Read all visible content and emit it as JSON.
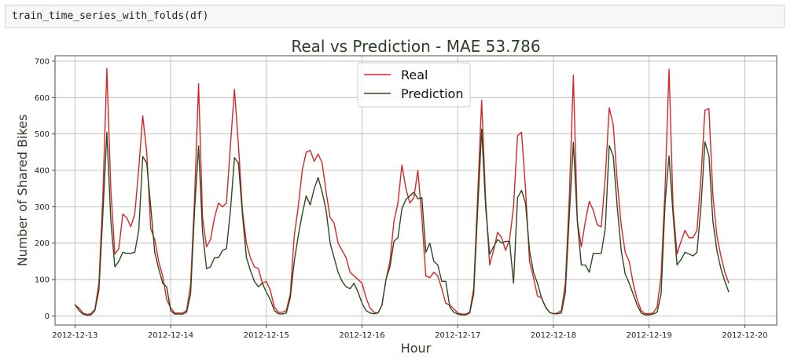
{
  "code_cell": {
    "code": "train_time_series_with_folds(df)"
  },
  "colors": {
    "real": "#d62728",
    "prediction": "#2c4a21",
    "frame": "#3f5a36",
    "grid": "#b0b0b0"
  },
  "chart_data": {
    "type": "line",
    "title": "Real vs Prediction - MAE 53.786",
    "xlabel": "Hour",
    "ylabel": "Number of Shared Bikes",
    "x_start": "2012-12-13 00:00",
    "x_step_hours": 1,
    "x_ticks": [
      "2012-12-13",
      "2012-12-14",
      "2012-12-15",
      "2012-12-16",
      "2012-12-17",
      "2012-12-18",
      "2012-12-19",
      "2012-12-20"
    ],
    "xlim": [
      "2012-12-12 19:00",
      "2012-12-20 08:00"
    ],
    "ylim": [
      -25,
      715
    ],
    "y_ticks": [
      0,
      100,
      200,
      300,
      400,
      500,
      600,
      700
    ],
    "grid": true,
    "legend": "top-center",
    "series": [
      {
        "name": "Real",
        "values": [
          30,
          22,
          8,
          4,
          6,
          18,
          90,
          330,
          680,
          345,
          170,
          185,
          280,
          270,
          245,
          280,
          405,
          550,
          450,
          240,
          210,
          150,
          110,
          45,
          22,
          8,
          8,
          8,
          15,
          85,
          325,
          638,
          270,
          190,
          210,
          270,
          310,
          300,
          310,
          470,
          623,
          470,
          290,
          200,
          160,
          135,
          130,
          90,
          95,
          70,
          25,
          10,
          10,
          15,
          60,
          220,
          300,
          400,
          450,
          455,
          425,
          445,
          420,
          340,
          270,
          255,
          200,
          180,
          160,
          120,
          110,
          100,
          90,
          50,
          22,
          10,
          8,
          30,
          100,
          150,
          260,
          310,
          415,
          350,
          310,
          325,
          400,
          270,
          110,
          105,
          120,
          110,
          75,
          35,
          30,
          20,
          8,
          5,
          5,
          10,
          75,
          330,
          593,
          320,
          140,
          180,
          230,
          215,
          180,
          210,
          300,
          495,
          505,
          350,
          150,
          105,
          55,
          50,
          25,
          10,
          6,
          8,
          15,
          90,
          330,
          662,
          260,
          190,
          260,
          315,
          290,
          250,
          245,
          380,
          572,
          525,
          370,
          250,
          175,
          150,
          90,
          45,
          15,
          6,
          6,
          8,
          25,
          110,
          350,
          678,
          300,
          170,
          205,
          235,
          215,
          215,
          235,
          380,
          565,
          570,
          330,
          220,
          165,
          120,
          90
        ]
      },
      {
        "name": "Prediction",
        "values": [
          32,
          15,
          5,
          2,
          3,
          15,
          70,
          280,
          505,
          260,
          135,
          150,
          175,
          172,
          172,
          175,
          235,
          438,
          420,
          300,
          175,
          130,
          90,
          80,
          15,
          5,
          5,
          5,
          10,
          60,
          290,
          467,
          230,
          130,
          135,
          160,
          160,
          180,
          185,
          290,
          435,
          420,
          280,
          160,
          125,
          95,
          80,
          90,
          65,
          45,
          15,
          6,
          5,
          8,
          50,
          150,
          220,
          280,
          330,
          305,
          350,
          380,
          340,
          290,
          200,
          160,
          120,
          95,
          80,
          75,
          90,
          65,
          35,
          15,
          8,
          6,
          8,
          30,
          100,
          135,
          205,
          215,
          295,
          320,
          330,
          340,
          322,
          325,
          175,
          200,
          150,
          140,
          95,
          95,
          25,
          10,
          5,
          3,
          3,
          8,
          60,
          290,
          513,
          300,
          170,
          190,
          210,
          200,
          205,
          205,
          90,
          325,
          345,
          310,
          180,
          120,
          90,
          50,
          25,
          10,
          6,
          6,
          8,
          65,
          280,
          477,
          260,
          140,
          140,
          120,
          172,
          172,
          172,
          240,
          468,
          440,
          300,
          180,
          115,
          90,
          60,
          30,
          8,
          3,
          3,
          5,
          10,
          60,
          310,
          440,
          280,
          140,
          155,
          175,
          170,
          165,
          175,
          300,
          478,
          440,
          260,
          180,
          130,
          95,
          65
        ]
      }
    ]
  }
}
